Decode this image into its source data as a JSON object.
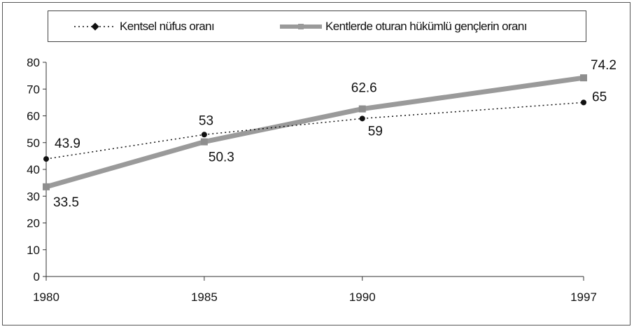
{
  "chart_data": {
    "type": "line",
    "x": [
      1980,
      1985,
      1990,
      1997
    ],
    "x_tick_labels": [
      "1980",
      "1985",
      "1990",
      "1997"
    ],
    "ylim": [
      0,
      80
    ],
    "y_ticks": [
      0,
      10,
      20,
      30,
      40,
      50,
      60,
      70,
      80
    ],
    "grid": false,
    "legend_position": "top",
    "series": [
      {
        "name": "Kentsel nüfus oranı",
        "values": [
          43.9,
          53,
          59,
          65
        ],
        "data_labels": [
          "43.9",
          "53",
          "59",
          "65"
        ],
        "color": "#111111",
        "style": "dotted"
      },
      {
        "name": "Kentlerde oturan hükümlü gençlerin oranı",
        "values": [
          33.5,
          50.3,
          62.6,
          74.2
        ],
        "data_labels": [
          "33.5",
          "50.3",
          "62.6",
          "74.2"
        ],
        "color": "#9a9a9a",
        "style": "solid-thick"
      }
    ]
  }
}
